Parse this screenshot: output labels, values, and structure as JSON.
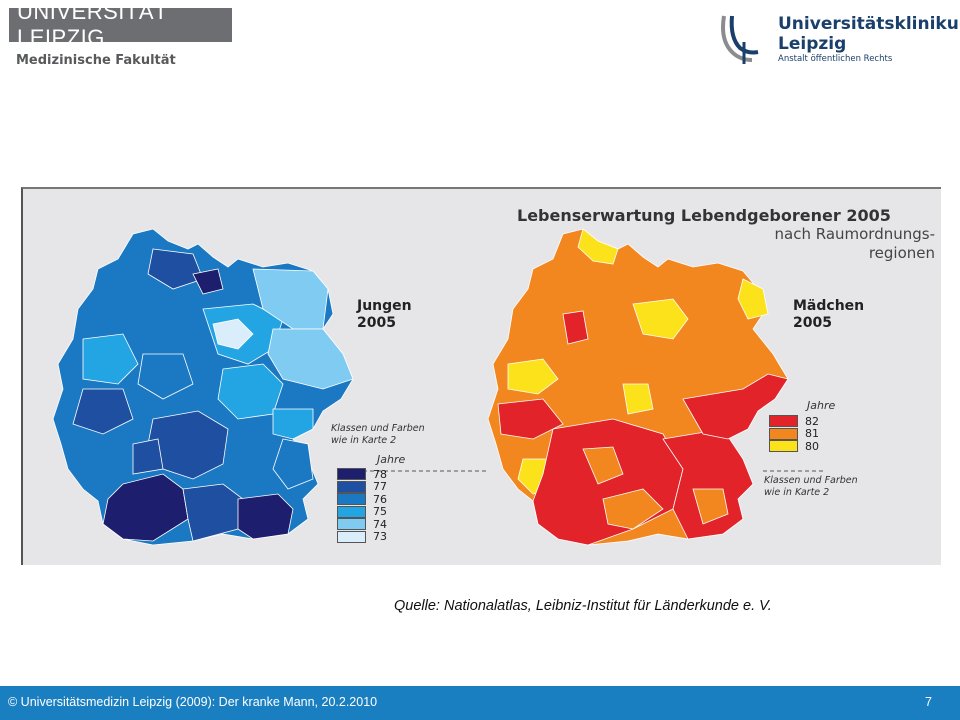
{
  "header": {
    "left_logo_text": "UNIVERSITÄT LEIPZIG",
    "left_logo_subtitle": "Medizinische Fakultät",
    "right_logo_line1": "Universitätsklinikum",
    "right_logo_line2": "Leipzig",
    "right_logo_subtitle": "Anstalt öffentlichen Rechts"
  },
  "map": {
    "title": "Lebenserwartung Lebendgeborener 2005",
    "subtitle_line1": "nach Raumordnungs-",
    "subtitle_line2": "regionen",
    "left_map": {
      "label_line1": "Jungen",
      "label_line2": "2005",
      "note_line1": "Klassen und Farben",
      "note_line2": "wie in Karte 2",
      "legend_title": "Jahre",
      "legend": [
        {
          "value": "78",
          "color": "#1d1f6e"
        },
        {
          "value": "77",
          "color": "#1f4fa0"
        },
        {
          "value": "76",
          "color": "#1b79c4"
        },
        {
          "value": "75",
          "color": "#23a4e3"
        },
        {
          "value": "74",
          "color": "#7fcbf2"
        },
        {
          "value": "73",
          "color": "#d9eefa"
        }
      ]
    },
    "right_map": {
      "label_line1": "Mädchen",
      "label_line2": "2005",
      "note_line1": "Klassen und Farben",
      "note_line2": "wie in Karte 2",
      "legend_title": "Jahre",
      "legend": [
        {
          "value": "82",
          "color": "#e2232a"
        },
        {
          "value": "81",
          "color": "#f2871f"
        },
        {
          "value": "80",
          "color": "#fbe21a"
        }
      ]
    }
  },
  "source_text": "Quelle: Nationalatlas, Leibniz-Institut für Länderkunde e. V.",
  "footer": {
    "text": "© Universitätsmedizin Leipzig (2009): Der kranke Mann, 20.2.2010",
    "page_number": "7"
  }
}
